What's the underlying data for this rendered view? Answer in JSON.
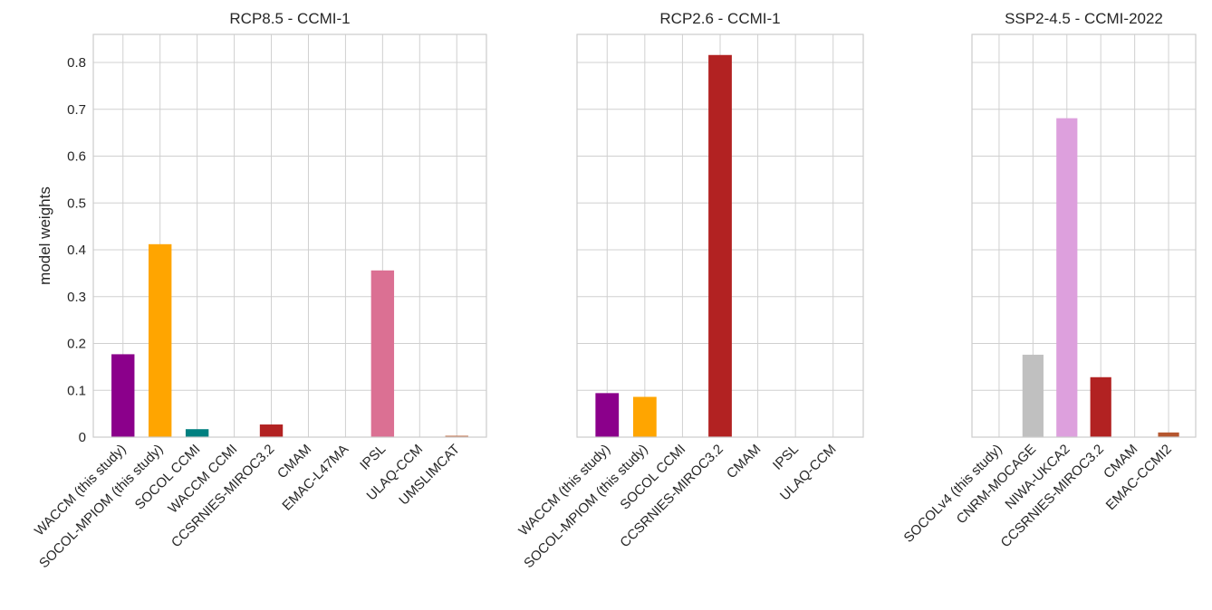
{
  "chart_data": [
    {
      "type": "bar",
      "title": "RCP8.5 - CCMI-1",
      "y_label": "model weights",
      "categories": [
        "WACCM (this study)",
        "SOCOL-MPIOM (this study)",
        "SOCOL CCMI",
        "WACCM CCMI",
        "CCSRNIES-MIROC3.2",
        "CMAM",
        "EMAC-L47MA",
        "IPSL",
        "ULAQ-CCM",
        "UMSLIMCAT"
      ],
      "values": [
        0.177,
        0.412,
        0.017,
        0,
        0.027,
        0,
        0,
        0.356,
        0,
        0.003
      ],
      "colors": [
        "#8b008b",
        "#ffa500",
        "#008080",
        null,
        "#b22222",
        null,
        null,
        "#db7093",
        null,
        "#c0704a"
      ],
      "ylim": [
        0,
        0.86
      ],
      "yticks": [
        0,
        0.1,
        0.2,
        0.3,
        0.4,
        0.5,
        0.6,
        0.7,
        0.8
      ],
      "grid": true
    },
    {
      "type": "bar",
      "title": "RCP2.6 - CCMI-1",
      "categories": [
        "WACCM (this study)",
        "SOCOL-MPIOM (this study)",
        "SOCOL CCMI",
        "CCSRNIES-MIROC3.2",
        "CMAM",
        "IPSL",
        "ULAQ-CCM"
      ],
      "values": [
        0.094,
        0.086,
        0,
        0.816,
        0,
        0,
        0
      ],
      "colors": [
        "#8b008b",
        "#ffa500",
        null,
        "#b22222",
        null,
        null,
        null
      ],
      "ylim": [
        0,
        0.86
      ],
      "grid": true
    },
    {
      "type": "bar",
      "title": "SSP2-4.5 - CCMI-2022",
      "categories": [
        "SOCOLv4 (this study)",
        "CNRM-MOCAGE",
        "NIWA-UKCA2",
        "CCSRNIES-MIROC3.2",
        "CMAM",
        "EMAC-CCMI2"
      ],
      "values": [
        0,
        0.176,
        0.681,
        0.128,
        0,
        0.01
      ],
      "colors": [
        null,
        "#c0c0c0",
        "#dda0dd",
        "#b22222",
        null,
        "#b5562f"
      ],
      "ylim": [
        0,
        0.86
      ],
      "grid": true
    }
  ]
}
